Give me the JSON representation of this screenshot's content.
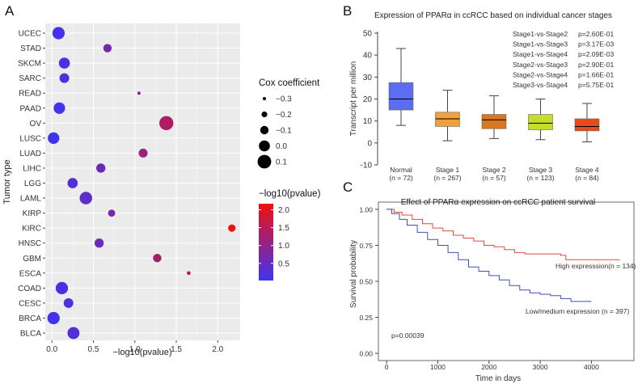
{
  "panels": {
    "a": {
      "letter": "A"
    },
    "b": {
      "letter": "B"
    },
    "c": {
      "letter": "C"
    }
  },
  "colors": {
    "low": "#3f33f0",
    "high": "#ee1111",
    "normal": "#5b6df0",
    "stage1": "#f0a13b",
    "stage2": "#d9761e",
    "stage3": "#c6dc2c",
    "stage4": "#e84a18",
    "km_high": "#e34a3c",
    "km_low": "#3f4fc2"
  },
  "chart_data": [
    {
      "id": "A",
      "type": "scatter",
      "xlabel": "−log10(pvalue)",
      "ylabel": "Tumor type",
      "xlim": [
        -0.08,
        2.27
      ],
      "xticks": [
        {
          "v": 0.0,
          "label": "0.0"
        },
        {
          "v": 0.5,
          "label": "0.5"
        },
        {
          "v": 1.0,
          "label": "1.0"
        },
        {
          "v": 1.5,
          "label": "1.5"
        },
        {
          "v": 2.0,
          "label": "2.0"
        }
      ],
      "grid": true,
      "categories": [
        "UCEC",
        "STAD",
        "SKCM",
        "SARC",
        "READ",
        "PAAD",
        "OV",
        "LUSC",
        "LUAD",
        "LIHC",
        "LGG",
        "LAML",
        "KIRP",
        "KIRC",
        "HNSC",
        "GBM",
        "ESCA",
        "COAD",
        "CESC",
        "BRCA",
        "BLCA"
      ],
      "points": [
        {
          "tumor": "UCEC",
          "x": 0.08,
          "cox": 0.05
        },
        {
          "tumor": "STAD",
          "x": 0.67,
          "cox": -0.1
        },
        {
          "tumor": "SKCM",
          "x": 0.15,
          "cox": 0.0
        },
        {
          "tumor": "SARC",
          "x": 0.15,
          "cox": -0.05
        },
        {
          "tumor": "READ",
          "x": 1.05,
          "cox": -0.3
        },
        {
          "tumor": "PAAD",
          "x": 0.09,
          "cox": 0.02
        },
        {
          "tumor": "OV",
          "x": 1.38,
          "cox": 0.12
        },
        {
          "tumor": "LUSC",
          "x": 0.02,
          "cox": 0.02
        },
        {
          "tumor": "LUAD",
          "x": 1.1,
          "cox": -0.08
        },
        {
          "tumor": "LIHC",
          "x": 0.59,
          "cox": -0.07
        },
        {
          "tumor": "LGG",
          "x": 0.25,
          "cox": -0.03
        },
        {
          "tumor": "LAML",
          "x": 0.41,
          "cox": 0.06
        },
        {
          "tumor": "KIRP",
          "x": 0.72,
          "cox": -0.15
        },
        {
          "tumor": "KIRC",
          "x": 2.17,
          "cox": -0.14
        },
        {
          "tumor": "HNSC",
          "x": 0.57,
          "cox": -0.07
        },
        {
          "tumor": "GBM",
          "x": 1.27,
          "cox": -0.1
        },
        {
          "tumor": "ESCA",
          "x": 1.65,
          "cox": -0.28
        },
        {
          "tumor": "COAD",
          "x": 0.12,
          "cox": 0.05
        },
        {
          "tumor": "CESC",
          "x": 0.2,
          "cox": -0.05
        },
        {
          "tumor": "BRCA",
          "x": 0.02,
          "cox": 0.05
        },
        {
          "tumor": "BLCA",
          "x": 0.26,
          "cox": 0.04
        }
      ],
      "size_legend": {
        "title": "Cox coefficient",
        "entries": [
          {
            "label": "−0.3",
            "v": -0.3
          },
          {
            "label": "−0.2",
            "v": -0.2
          },
          {
            "label": "−0.1",
            "v": -0.1
          },
          {
            "label": "0.0",
            "v": 0.0
          },
          {
            "label": "0.1",
            "v": 0.1
          }
        ]
      },
      "color_legend": {
        "title": "−log10(pvalue)",
        "min": 0.02,
        "max": 2.17,
        "ticks": [
          {
            "v": 2.0,
            "label": "2.0"
          },
          {
            "v": 1.5,
            "label": "1.5"
          },
          {
            "v": 1.0,
            "label": "1.0"
          },
          {
            "v": 0.5,
            "label": "0.5"
          }
        ]
      }
    },
    {
      "id": "B",
      "type": "box",
      "title": "Expression of PPARα in ccRCC based on individual cancer stages",
      "ylabel": "Transcript per million",
      "ylim": [
        -10,
        50
      ],
      "yticks": [
        50,
        40,
        30,
        20,
        10,
        0,
        -10
      ],
      "boxes": [
        {
          "name": "Normal",
          "n": "(n = 72)",
          "min": 8.0,
          "q1": 15.0,
          "median": 20.0,
          "q3": 27.5,
          "max": 43.0,
          "color_key": "normal"
        },
        {
          "name": "Stage 1",
          "n": "(n = 267)",
          "min": 1.0,
          "q1": 7.5,
          "median": 11.0,
          "q3": 14.0,
          "max": 24.0,
          "color_key": "stage1"
        },
        {
          "name": "Stage 2",
          "n": "(n = 57)",
          "min": 2.0,
          "q1": 6.5,
          "median": 10.5,
          "q3": 13.0,
          "max": 21.5,
          "color_key": "stage2"
        },
        {
          "name": "Stage 3",
          "n": "(n = 123)",
          "min": 1.5,
          "q1": 6.0,
          "median": 9.0,
          "q3": 13.0,
          "max": 20.0,
          "color_key": "stage3"
        },
        {
          "name": "Stage 4",
          "n": "(n = 84)",
          "min": 0.5,
          "q1": 5.5,
          "median": 7.5,
          "q3": 11.0,
          "max": 18.0,
          "color_key": "stage4"
        }
      ],
      "comparisons": [
        {
          "label": "Stage1-vs-Stage2",
          "p": "p=2.60E-01",
          "highlight": false
        },
        {
          "label": "Stage1-vs-Stage3",
          "p": "p=3.17E-03",
          "highlight": true
        },
        {
          "label": "Stage1-vs-Stage4",
          "p": "p=2.09E-03",
          "highlight": true
        },
        {
          "label": "Stage2-vs-Stage3",
          "p": "p=2.90E-01",
          "highlight": false
        },
        {
          "label": "Stage2-vs-Stage4",
          "p": "p=1.66E-01",
          "highlight": false
        },
        {
          "label": "Stage3-vs-Stage4",
          "p": "p=5.75E-01",
          "highlight": false
        }
      ]
    },
    {
      "id": "C",
      "type": "line",
      "title": "Effect of PPARα expression on ccRCC patient survival",
      "xlabel": "Time in days",
      "ylabel": "Survival probability",
      "xlim": [
        -160,
        4830
      ],
      "ylim": [
        -0.05,
        1.05
      ],
      "xticks": [
        {
          "v": 0,
          "label": "0"
        },
        {
          "v": 1000,
          "label": "1000"
        },
        {
          "v": 2000,
          "label": "2000"
        },
        {
          "v": 3000,
          "label": "3000"
        },
        {
          "v": 4000,
          "label": "4000"
        }
      ],
      "yticks": [
        {
          "v": 1.0,
          "label": "1.00"
        },
        {
          "v": 0.75,
          "label": "0.75"
        },
        {
          "v": 0.5,
          "label": "0.50"
        },
        {
          "v": 0.25,
          "label": "0.25"
        },
        {
          "v": 0.0,
          "label": "0.00"
        }
      ],
      "pvalue": "p=0.00039",
      "series": [
        {
          "name": "High expresssion",
          "label": "High expresssion(n = 134)",
          "color_key": "km_high",
          "points": [
            [
              0,
              1.0
            ],
            [
              150,
              0.98
            ],
            [
              300,
              0.96
            ],
            [
              500,
              0.93
            ],
            [
              700,
              0.9
            ],
            [
              900,
              0.87
            ],
            [
              1100,
              0.85
            ],
            [
              1300,
              0.82
            ],
            [
              1500,
              0.8
            ],
            [
              1700,
              0.78
            ],
            [
              1900,
              0.75
            ],
            [
              2100,
              0.74
            ],
            [
              2300,
              0.72
            ],
            [
              2500,
              0.7
            ],
            [
              2700,
              0.69
            ],
            [
              3000,
              0.69
            ],
            [
              3400,
              0.68
            ],
            [
              3500,
              0.65
            ],
            [
              4000,
              0.65
            ],
            [
              4550,
              0.65
            ]
          ]
        },
        {
          "name": "Low/medium expression",
          "label": "Low/medium expression (n = 397)",
          "color_key": "km_low",
          "points": [
            [
              0,
              1.0
            ],
            [
              100,
              0.97
            ],
            [
              250,
              0.93
            ],
            [
              400,
              0.89
            ],
            [
              600,
              0.84
            ],
            [
              800,
              0.79
            ],
            [
              1000,
              0.75
            ],
            [
              1200,
              0.7
            ],
            [
              1400,
              0.65
            ],
            [
              1600,
              0.6
            ],
            [
              1800,
              0.57
            ],
            [
              2000,
              0.54
            ],
            [
              2200,
              0.51
            ],
            [
              2400,
              0.47
            ],
            [
              2600,
              0.44
            ],
            [
              2800,
              0.42
            ],
            [
              3000,
              0.41
            ],
            [
              3200,
              0.4
            ],
            [
              3400,
              0.38
            ],
            [
              3600,
              0.36
            ],
            [
              4000,
              0.36
            ]
          ]
        }
      ]
    }
  ]
}
